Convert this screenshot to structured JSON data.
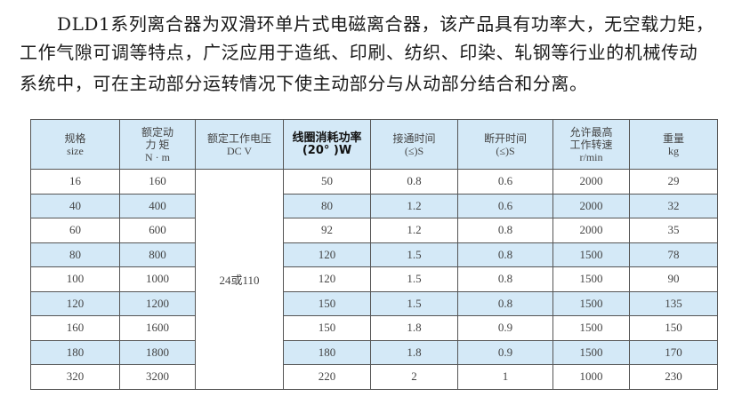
{
  "intro": {
    "line1": "DLD1系列离合器为双滑环单片式电磁离合器，该产品具有功率大，无空载力矩，",
    "line2": "工作气隙可调等特点，广泛应用于造纸、印刷、纺织、印染、轧钢等行业的机械传动",
    "line3": "系统中，可在主动部分运转情况下使主动部分与从动部分结合和分离。"
  },
  "table": {
    "headers": [
      [
        "规格",
        "size"
      ],
      [
        "额定动",
        "力 矩",
        "N · m"
      ],
      [
        "额定工作电压",
        "DC V"
      ],
      [
        "线圈消耗功率",
        "(20°  )W"
      ],
      [
        "接通时间",
        "(≤)S"
      ],
      [
        "断开时间",
        "(≤)S"
      ],
      [
        "允许最高",
        "工作转速",
        "r/min"
      ],
      [
        "重量",
        "kg"
      ]
    ],
    "voltage": "24或110",
    "rows": [
      [
        "16",
        "160",
        "50",
        "0.8",
        "0.6",
        "2000",
        "29"
      ],
      [
        "40",
        "400",
        "80",
        "1.2",
        "0.6",
        "2000",
        "32"
      ],
      [
        "60",
        "600",
        "92",
        "1.2",
        "0.8",
        "2000",
        "35"
      ],
      [
        "80",
        "800",
        "120",
        "1.5",
        "0.8",
        "1500",
        "78"
      ],
      [
        "100",
        "1000",
        "120",
        "1.5",
        "0.8",
        "1500",
        "90"
      ],
      [
        "120",
        "1200",
        "150",
        "1.5",
        "0.8",
        "1500",
        "135"
      ],
      [
        "160",
        "1600",
        "150",
        "1.8",
        "0.9",
        "1500",
        "150"
      ],
      [
        "180",
        "1800",
        "180",
        "1.8",
        "0.9",
        "1500",
        "170"
      ],
      [
        "320",
        "3200",
        "220",
        "2",
        "1",
        "1000",
        "230"
      ]
    ],
    "header_color": "#d4e9f7"
  }
}
